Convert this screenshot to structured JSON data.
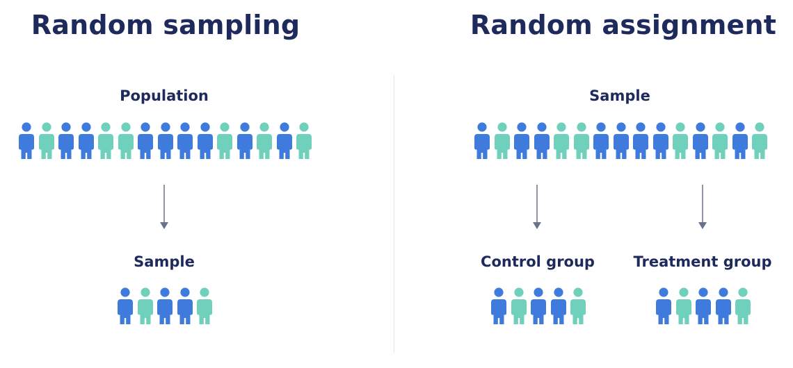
{
  "colors": {
    "title": "#1f2a5c",
    "person_blue": "#3e7bdc",
    "person_teal": "#6fd0bc",
    "arrow": "#6b7188",
    "divider": "#e3e5ea"
  },
  "left_panel": {
    "title": "Random sampling",
    "population": {
      "label": "Population",
      "people": [
        "blue",
        "teal",
        "blue",
        "blue",
        "teal",
        "teal",
        "blue",
        "blue",
        "blue",
        "blue",
        "teal",
        "blue",
        "teal",
        "blue",
        "teal"
      ]
    },
    "sample": {
      "label": "Sample",
      "people": [
        "blue",
        "teal",
        "blue",
        "blue",
        "teal"
      ]
    }
  },
  "right_panel": {
    "title": "Random assignment",
    "sample": {
      "label": "Sample",
      "people": [
        "blue",
        "teal",
        "blue",
        "blue",
        "teal",
        "teal",
        "blue",
        "blue",
        "blue",
        "blue",
        "teal",
        "blue",
        "teal",
        "blue",
        "teal"
      ]
    },
    "control_group": {
      "label": "Control group",
      "people": [
        "blue",
        "teal",
        "blue",
        "blue",
        "teal"
      ]
    },
    "treatment_group": {
      "label": "Treatment group",
      "people": [
        "blue",
        "teal",
        "blue",
        "blue",
        "teal"
      ]
    }
  }
}
